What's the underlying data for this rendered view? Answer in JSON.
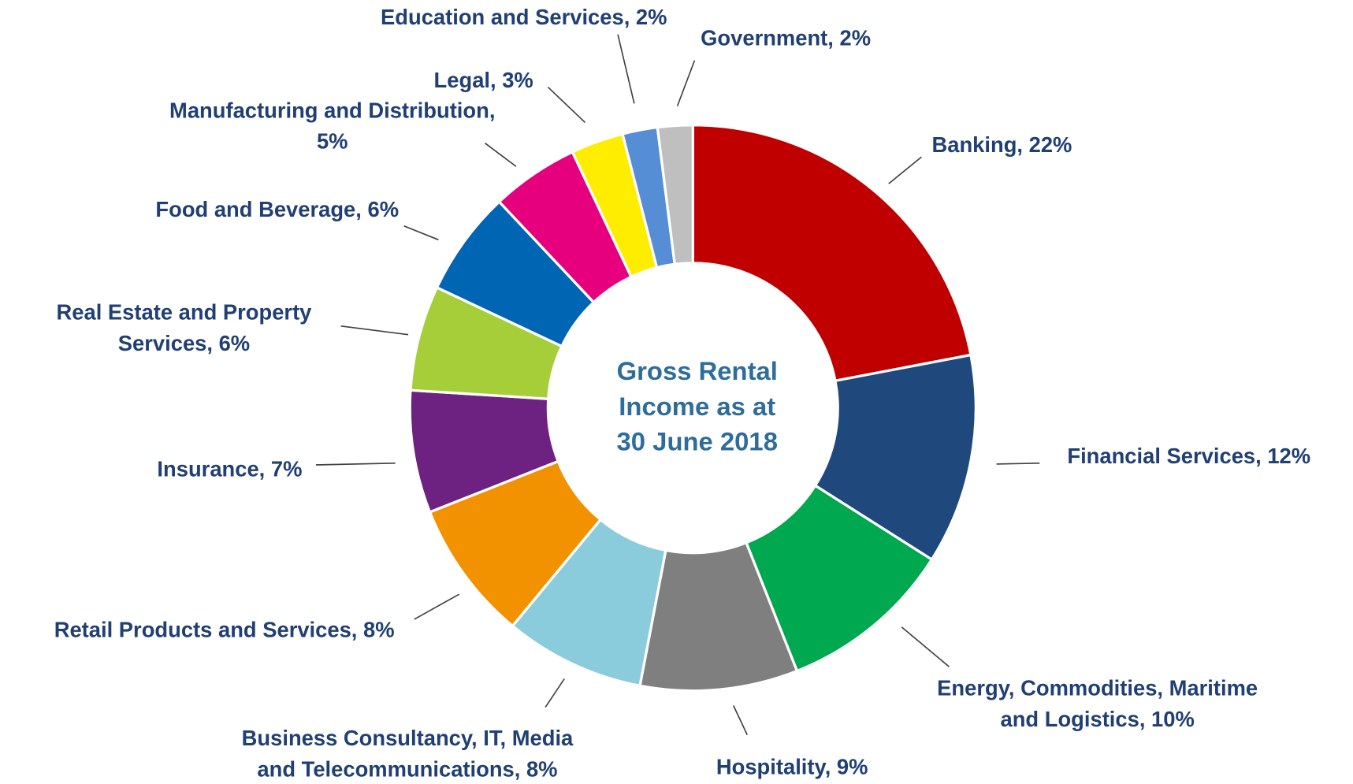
{
  "chart_data": {
    "type": "donut",
    "center_text": [
      "Gross Rental",
      "Income as at",
      "30 June 2018"
    ],
    "values": [
      22,
      12,
      10,
      9,
      8,
      8,
      7,
      6,
      6,
      5,
      3,
      2,
      2
    ],
    "value_labels": [
      [
        "Banking, 22%"
      ],
      [
        "Financial Services, 12%"
      ],
      [
        "Energy, Commodities, Maritime",
        "and Logistics, 10%"
      ],
      [
        "Hospitality, 9%"
      ],
      [
        "Business Consultancy, IT, Media",
        "and Telecommunications, 8%"
      ],
      [
        "Retail Products and Services, 8%"
      ],
      [
        "Insurance, 7%"
      ],
      [
        "Real Estate and Property",
        "Services, 6%"
      ],
      [
        "Food and Beverage, 6%"
      ],
      [
        "Manufacturing and Distribution,",
        "5%"
      ],
      [
        "Legal, 3%"
      ],
      [
        "Education and Services, 2%"
      ],
      [
        "Government, 2%"
      ]
    ],
    "colors": [
      "#c00000",
      "#1f497d",
      "#00a84f",
      "#7f7f7f",
      "#8accdc",
      "#f39200",
      "#6d2180",
      "#a6ce39",
      "#0066b3",
      "#e6007e",
      "#ffed00",
      "#558ed5",
      "#bfbfbf"
    ]
  }
}
